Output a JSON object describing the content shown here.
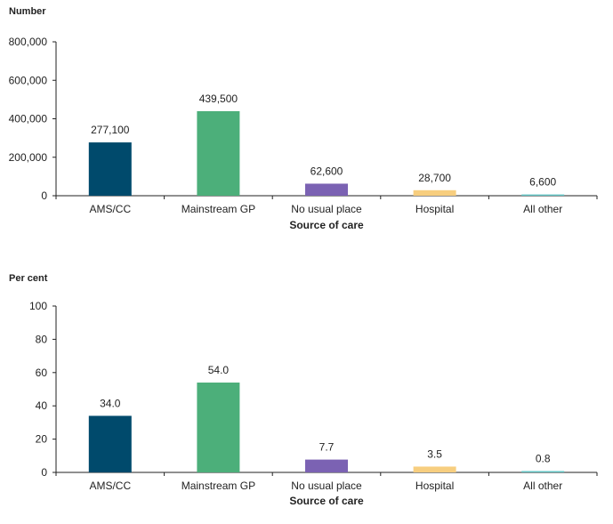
{
  "chart_data": [
    {
      "type": "bar",
      "ylabel": "Number",
      "xlabel": "Source of care",
      "categories": [
        "AMS/CC",
        "Mainstream GP",
        "No usual place",
        "Hospital",
        "All other"
      ],
      "values": [
        277100,
        439500,
        62600,
        28700,
        6600
      ],
      "value_labels": [
        "277,100",
        "439,500",
        "62,600",
        "28,700",
        "6,600"
      ],
      "ylim": [
        0,
        800000
      ],
      "yticks": [
        0,
        200000,
        400000,
        600000,
        800000
      ],
      "ytick_labels": [
        "0",
        "200,000",
        "400,000",
        "600,000",
        "800,000"
      ],
      "colors": [
        "#004a6c",
        "#4caf7a",
        "#7b62b3",
        "#f7ce7f",
        "#62c3c3"
      ],
      "grid": false,
      "legend": "none"
    },
    {
      "type": "bar",
      "ylabel": "Per cent",
      "xlabel": "Source of care",
      "categories": [
        "AMS/CC",
        "Mainstream GP",
        "No usual place",
        "Hospital",
        "All other"
      ],
      "values": [
        34.0,
        54.0,
        7.7,
        3.5,
        0.8
      ],
      "value_labels": [
        "34.0",
        "54.0",
        "7.7",
        "3.5",
        "0.8"
      ],
      "ylim": [
        0,
        100
      ],
      "yticks": [
        0,
        20,
        40,
        60,
        80,
        100
      ],
      "ytick_labels": [
        "0",
        "20",
        "40",
        "60",
        "80",
        "100"
      ],
      "colors": [
        "#004a6c",
        "#4caf7a",
        "#7b62b3",
        "#f7ce7f",
        "#62c3c3"
      ],
      "grid": false,
      "legend": "none"
    }
  ]
}
